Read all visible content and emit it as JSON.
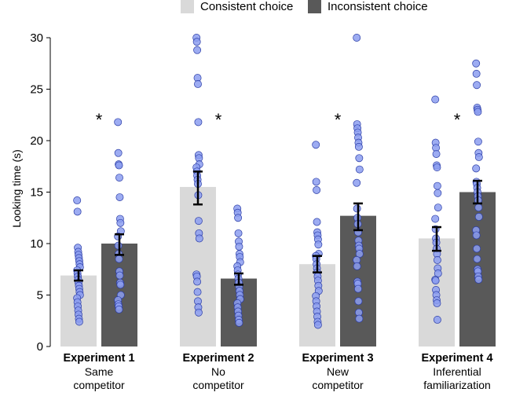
{
  "chart_data": {
    "type": "bar",
    "title": "",
    "xlabel": "",
    "ylabel": "Looking time (s)",
    "ylim": [
      0,
      30
    ],
    "yticks": [
      0,
      5,
      10,
      15,
      20,
      25,
      30
    ],
    "legend_position": "top",
    "colors": {
      "consistent": "#d9d9d9",
      "inconsistent": "#595959",
      "points": "#8c9ef0",
      "point_edge": "#2a3ca6"
    },
    "series": [
      {
        "name": "Consistent choice",
        "key": "consistent"
      },
      {
        "name": "Inconsistent choice",
        "key": "inconsistent"
      }
    ],
    "categories": [
      {
        "title": "Experiment 1",
        "line1": "Same",
        "line2": "competitor"
      },
      {
        "title": "Experiment 2",
        "line1": "No",
        "line2": "competitor"
      },
      {
        "title": "Experiment 3",
        "line1": "New",
        "line2": "competitor"
      },
      {
        "title": "Experiment 4",
        "line1": "Inferential",
        "line2": "familiarization"
      }
    ],
    "significance_marker": "*",
    "groups": [
      {
        "consistent": {
          "mean": 6.9,
          "sem_low": 6.4,
          "sem_high": 7.4,
          "points": [
            14.2,
            13.1,
            9.6,
            9.2,
            8.9,
            8.6,
            8.3,
            8.0,
            7.7,
            7.4,
            7.1,
            6.8,
            6.5,
            6.2,
            5.9,
            5.6,
            5.3,
            5.0,
            4.7,
            4.3,
            3.9,
            3.5,
            3.1,
            2.7,
            2.4
          ]
        },
        "inconsistent": {
          "mean": 10.0,
          "sem_low": 8.9,
          "sem_high": 10.9,
          "points": [
            21.8,
            18.8,
            17.7,
            17.6,
            16.4,
            14.5,
            12.4,
            12.0,
            11.2,
            10.7,
            9.8,
            9.0,
            8.5,
            7.3,
            6.9,
            6.2,
            6.0,
            5.0,
            4.5,
            4.1,
            3.9,
            3.6
          ]
        }
      },
      {
        "consistent": {
          "mean": 15.5,
          "sem_low": 13.8,
          "sem_high": 17.0,
          "points": [
            30.0,
            29.6,
            28.8,
            26.1,
            25.5,
            21.8,
            18.6,
            18.3,
            17.7,
            17.4,
            17.0,
            16.6,
            16.2,
            15.8,
            14.7,
            12.2,
            11.0,
            10.5,
            7.0,
            6.8,
            6.3,
            5.3,
            4.4,
            3.8,
            3.3
          ]
        },
        "inconsistent": {
          "mean": 6.6,
          "sem_low": 6.0,
          "sem_high": 7.1,
          "points": [
            13.4,
            13.0,
            12.5,
            11.0,
            10.2,
            9.7,
            9.0,
            8.7,
            8.2,
            7.8,
            7.4,
            7.0,
            6.6,
            6.2,
            5.8,
            5.4,
            5.0,
            4.6,
            4.2,
            3.8,
            3.4,
            3.0,
            2.6,
            2.3
          ]
        }
      },
      {
        "consistent": {
          "mean": 8.0,
          "sem_low": 7.2,
          "sem_high": 8.8,
          "points": [
            19.6,
            16.0,
            15.2,
            12.1,
            11.1,
            10.8,
            10.4,
            9.9,
            9.0,
            8.8,
            8.5,
            8.0,
            7.6,
            7.2,
            6.8,
            6.4,
            5.9,
            5.4,
            4.9,
            4.4,
            3.9,
            3.4,
            2.9,
            2.4,
            2.1
          ]
        },
        "inconsistent": {
          "mean": 12.7,
          "sem_low": 11.3,
          "sem_high": 13.9,
          "points": [
            30.0,
            21.6,
            21.2,
            20.8,
            20.3,
            19.8,
            19.4,
            18.3,
            17.2,
            15.9,
            13.4,
            12.5,
            11.9,
            11.1,
            10.3,
            9.8,
            9.5,
            9.0,
            8.4,
            7.8,
            6.3,
            6.1,
            5.6,
            4.4,
            3.3,
            2.7
          ]
        }
      },
      {
        "consistent": {
          "mean": 10.5,
          "sem_low": 9.3,
          "sem_high": 11.6,
          "points": [
            24.0,
            19.8,
            19.3,
            18.7,
            17.6,
            17.4,
            15.6,
            14.9,
            13.5,
            12.4,
            11.4,
            10.5,
            10.1,
            9.5,
            9.0,
            8.4,
            7.6,
            7.1,
            6.5,
            6.4,
            5.5,
            5.0,
            4.5,
            4.2,
            2.6
          ]
        },
        "inconsistent": {
          "mean": 15.0,
          "sem_low": 13.9,
          "sem_high": 16.1,
          "points": [
            27.5,
            26.5,
            25.4,
            23.2,
            23.0,
            22.8,
            19.9,
            18.8,
            18.4,
            17.3,
            16.0,
            15.8,
            15.4,
            15.0,
            14.6,
            14.2,
            13.5,
            12.6,
            11.3,
            10.8,
            9.5,
            8.5,
            7.5,
            7.3,
            6.8,
            6.5
          ]
        }
      }
    ]
  }
}
